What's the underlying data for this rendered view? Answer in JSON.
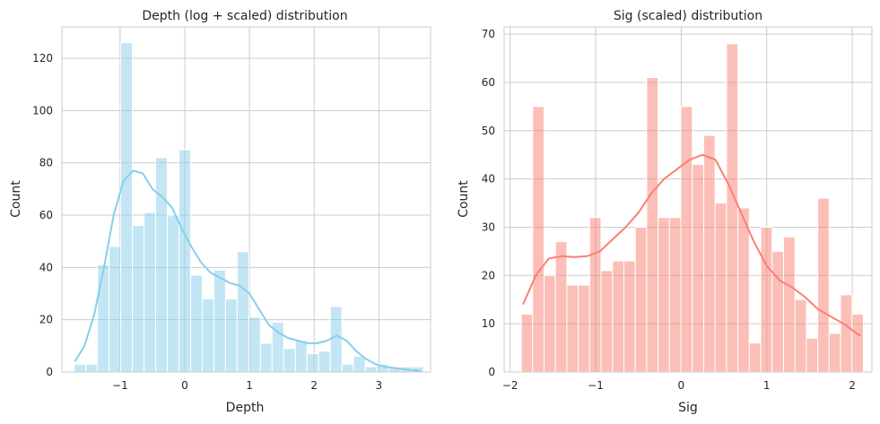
{
  "chart_data": [
    {
      "type": "bar",
      "title": "Depth (log + scaled) distribution",
      "xlabel": "Depth",
      "ylabel": "Count",
      "xlim": [
        -1.9,
        3.8
      ],
      "ylim": [
        0,
        132
      ],
      "xticks": [
        -1,
        0,
        1,
        2,
        3
      ],
      "xtick_labels": [
        "−1",
        "0",
        "1",
        "2",
        "3"
      ],
      "yticks": [
        0,
        20,
        40,
        60,
        80,
        100,
        120
      ],
      "ytick_labels": [
        "0",
        "20",
        "40",
        "60",
        "80",
        "100",
        "120"
      ],
      "grid": true,
      "color": "#87ceeb",
      "bin_edges": [
        -1.71,
        -1.53,
        -1.35,
        -1.17,
        -0.99,
        -0.81,
        -0.63,
        -0.45,
        -0.27,
        -0.09,
        0.09,
        0.27,
        0.45,
        0.63,
        0.81,
        0.99,
        1.17,
        1.35,
        1.53,
        1.71,
        1.89,
        2.07,
        2.25,
        2.43,
        2.61,
        2.79,
        2.97,
        3.15,
        3.33,
        3.51,
        3.69
      ],
      "counts": [
        3,
        3,
        41,
        48,
        126,
        56,
        61,
        82,
        60,
        85,
        37,
        28,
        39,
        28,
        46,
        21,
        11,
        19,
        9,
        12,
        7,
        8,
        25,
        3,
        6,
        2,
        3,
        2,
        2,
        2
      ],
      "kde": {
        "x": [
          -1.7,
          -1.55,
          -1.4,
          -1.25,
          -1.1,
          -0.95,
          -0.8,
          -0.65,
          -0.5,
          -0.35,
          -0.2,
          -0.05,
          0.1,
          0.25,
          0.4,
          0.55,
          0.7,
          0.85,
          1.0,
          1.15,
          1.3,
          1.45,
          1.6,
          1.75,
          1.9,
          2.05,
          2.2,
          2.35,
          2.5,
          2.65,
          2.8,
          2.95,
          3.1,
          3.25,
          3.4,
          3.55,
          3.65
        ],
        "y": [
          4,
          10,
          22,
          40,
          60,
          73,
          77,
          76,
          70,
          67,
          63,
          55,
          48,
          42,
          38,
          36,
          34,
          33,
          30,
          24,
          18,
          15,
          13,
          12,
          11,
          11,
          12,
          14,
          12,
          8,
          5,
          3,
          2,
          1.5,
          1,
          0.6,
          0.4
        ]
      }
    },
    {
      "type": "bar",
      "title": "Sig (scaled) distribution",
      "xlabel": "Sig",
      "ylabel": "Count",
      "xlim": [
        -2.07,
        2.23
      ],
      "ylim": [
        0,
        71.5
      ],
      "xticks": [
        -2,
        -1,
        0,
        1,
        2
      ],
      "xtick_labels": [
        "−2",
        "−1",
        "0",
        "1",
        "2"
      ],
      "yticks": [
        0,
        10,
        20,
        30,
        40,
        50,
        60,
        70
      ],
      "ytick_labels": [
        "0",
        "10",
        "20",
        "30",
        "40",
        "50",
        "60",
        "70"
      ],
      "grid": true,
      "color": "#fa8072",
      "bin_edges": [
        -1.87,
        -1.7367,
        -1.6033,
        -1.47,
        -1.3367,
        -1.2033,
        -1.07,
        -0.9367,
        -0.8033,
        -0.67,
        -0.5367,
        -0.4033,
        -0.27,
        -0.1367,
        -0.0033,
        0.13,
        0.2633,
        0.3967,
        0.53,
        0.6633,
        0.7967,
        0.93,
        1.0633,
        1.1967,
        1.33,
        1.4633,
        1.5967,
        1.73,
        1.8633,
        1.9967,
        2.13
      ],
      "counts": [
        12,
        55,
        20,
        27,
        18,
        18,
        32,
        21,
        23,
        23,
        30,
        61,
        32,
        32,
        55,
        43,
        49,
        35,
        68,
        34,
        6,
        30,
        25,
        28,
        15,
        7,
        36,
        8,
        16,
        12
      ],
      "kde": {
        "x": [
          -1.85,
          -1.7,
          -1.55,
          -1.4,
          -1.25,
          -1.1,
          -0.95,
          -0.8,
          -0.65,
          -0.5,
          -0.35,
          -0.2,
          -0.05,
          0.1,
          0.25,
          0.4,
          0.55,
          0.7,
          0.85,
          1.0,
          1.15,
          1.3,
          1.45,
          1.6,
          1.75,
          1.9,
          2.05,
          2.1
        ],
        "y": [
          14,
          20,
          23.5,
          24,
          23.8,
          24,
          25,
          27.5,
          30,
          33,
          37,
          40,
          42,
          44,
          45,
          44,
          39,
          33,
          27,
          22,
          19,
          17.5,
          15.5,
          13,
          11.5,
          10,
          8,
          7.5
        ]
      }
    }
  ]
}
